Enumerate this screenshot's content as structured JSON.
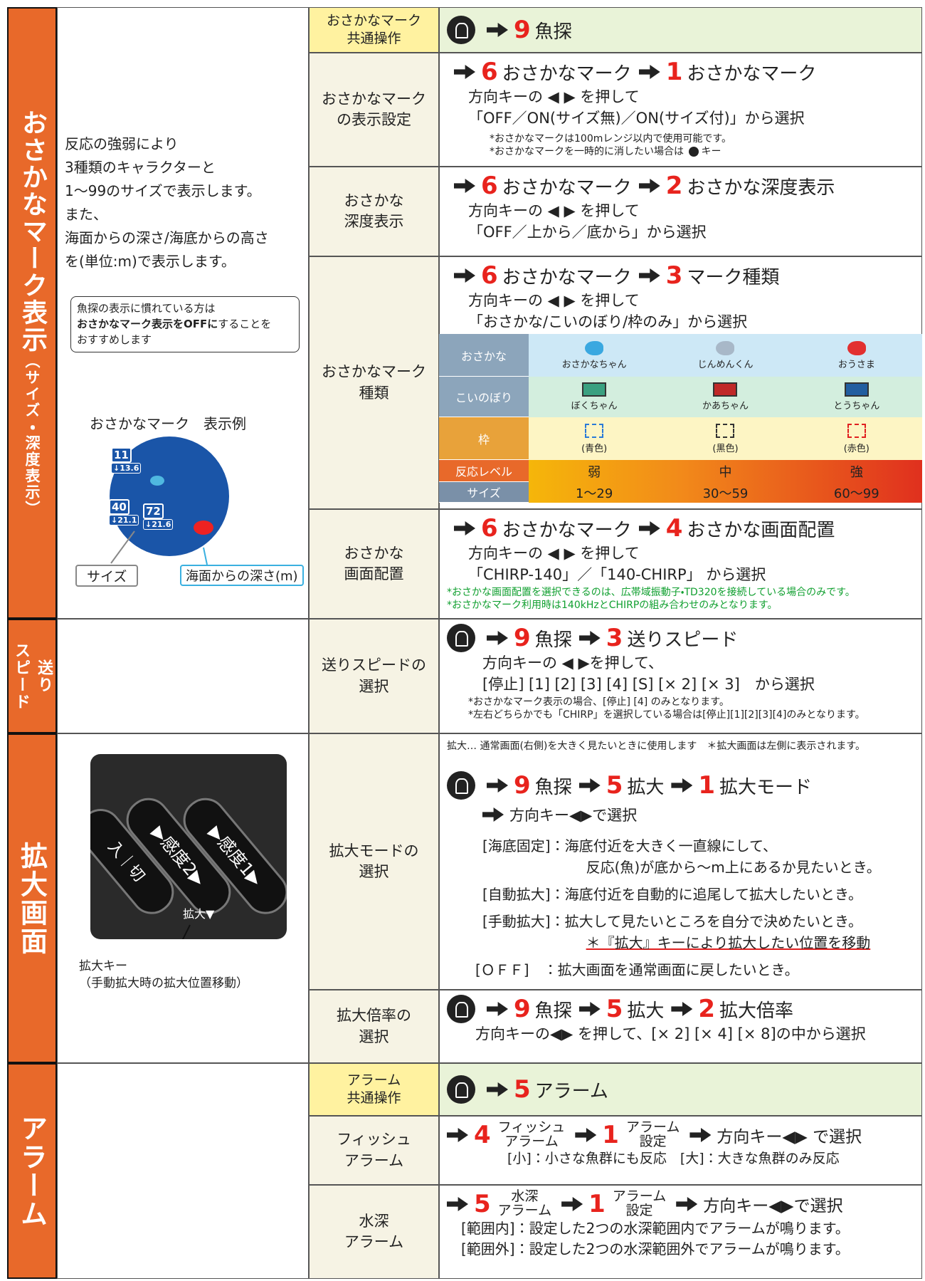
{
  "fish_mark": {
    "title": "おさかなマーク表示",
    "subtitle": "（サイズ・深度表示）",
    "description": [
      "反応の強弱により",
      "3種類のキャラクターと",
      "1～99のサイズで表示します。",
      "また、",
      "海面からの深さ/海底からの高さ",
      "を(単位:m)で表示します。"
    ],
    "note": {
      "line1": "魚探の表示に慣れている方は",
      "bold": "おさかなマーク表示をOFFに",
      "line2_rest": "することを",
      "line3": "おすすめします"
    },
    "example": {
      "title": "おさかなマーク　表示例",
      "marks": [
        {
          "size": "11",
          "depth": "↓13.6"
        },
        {
          "size": "40",
          "depth": "↓21.1"
        },
        {
          "size": "72",
          "depth": "↓21.6"
        }
      ],
      "callouts": [
        "サイズ",
        "海面からの深さ(m)"
      ]
    },
    "common": {
      "label": [
        "おさかなマーク",
        "共通操作"
      ],
      "steps": [
        {
          "num": "9",
          "text": "魚探"
        }
      ]
    },
    "display": {
      "label": [
        "おさかなマーク",
        "の表示設定"
      ],
      "steps": [
        {
          "num": "6",
          "text": "おさかなマーク"
        },
        {
          "num": "1",
          "text": "おさかなマーク"
        }
      ],
      "lines": [
        "方向キーの ◀ ▶ を押して",
        "「OFF／ON(サイズ無)／ON(サイズ付)」から選択"
      ],
      "notes": [
        "*おさかなマークは100mレンジ以内で使用可能です。",
        "*おさかなマークを一時的に消したい場合は",
        "キー"
      ]
    },
    "depth": {
      "label": [
        "おさかな",
        "深度表示"
      ],
      "steps": [
        {
          "num": "6",
          "text": "おさかなマーク"
        },
        {
          "num": "2",
          "text": "おさかな深度表示"
        }
      ],
      "lines": [
        "方向キーの ◀ ▶ を押して",
        "「OFF／上から／底から」から選択"
      ]
    },
    "type": {
      "label": [
        "おさかなマーク",
        "種類"
      ],
      "steps": [
        {
          "num": "6",
          "text": "おさかなマーク"
        },
        {
          "num": "3",
          "text": "マーク種類"
        }
      ],
      "lines": [
        "方向キーの ◀ ▶ を押して",
        "「おさかな/こいのぼり/枠のみ」から選択"
      ],
      "table": [
        {
          "head": "おさかな",
          "cells": [
            "おさかなちゃん",
            "じんめんくん",
            "おうさま"
          ]
        },
        {
          "head": "こいのぼり",
          "cells": [
            "ぼくちゃん",
            "かあちゃん",
            "とうちゃん"
          ]
        },
        {
          "head": "枠",
          "cells": [
            "(青色)",
            "(黒色)",
            "(赤色)"
          ]
        },
        {
          "head": "反応レベル",
          "cells": [
            "弱",
            "中",
            "強"
          ]
        },
        {
          "head": "サイズ",
          "cells": [
            "1～29",
            "30～59",
            "60～99"
          ]
        }
      ]
    },
    "layout": {
      "label": [
        "おさかな",
        "画面配置"
      ],
      "steps": [
        {
          "num": "6",
          "text": "おさかなマーク"
        },
        {
          "num": "4",
          "text": "おさかな画面配置"
        }
      ],
      "lines": [
        "方向キーの ◀ ▶ を押して",
        "「CHIRP-140」／「140-CHIRP」 から選択"
      ],
      "notes": [
        "*おさかな画面配置を選択できるのは、広帯域振動子・TD320を接続している場合のみです。",
        "*おさかなマーク利用時は140kHzとCHIRPの組み合わせのみとなります。"
      ]
    }
  },
  "speed": {
    "title": [
      "送り",
      "スピード"
    ],
    "label": [
      "送りスピードの",
      "選択"
    ],
    "steps": [
      {
        "num": "9",
        "text": "魚探"
      },
      {
        "num": "3",
        "text": "送りスピード"
      }
    ],
    "lines": [
      "方向キーの ◀ ▶を押して、",
      "[停止] [1] [2] [3] [4] [S] [× 2] [× 3]　から選択"
    ],
    "notes": [
      "*おさかなマーク表示の場合、[停止] [4] のみとなります。",
      "*左右どちらかでも「CHIRP」を選択している場合は[停止][1][2][3][4]のみとなります。"
    ]
  },
  "zoom": {
    "title": "拡大画面",
    "key_label": [
      "拡大キー",
      "（手動拡大時の拡大位置移動）"
    ],
    "keypad": [
      "入｜切",
      "▶感度2▶",
      "▶感度1▶",
      "拡大▼"
    ],
    "mode": {
      "label": [
        "拡大モードの",
        "選択"
      ],
      "intro": "拡大… 通常画面(右側)を大きく見たいときに使用します　＊拡大画面は左側に表示されます。",
      "steps": [
        {
          "num": "9",
          "text": "魚探"
        },
        {
          "num": "5",
          "text": "拡大"
        },
        {
          "num": "1",
          "text": "拡大モード"
        }
      ],
      "select": "方向キー◀▶で選択",
      "items": [
        {
          "key": "[海底固定]：",
          "text": [
            "海底付近を大きく一直線にして、",
            "反応(魚)が底から～m上にあるか見たいとき。"
          ]
        },
        {
          "key": "[自動拡大]：",
          "text": [
            "海底付近を自動的に追尾して拡大したいとき。"
          ]
        },
        {
          "key": "[手動拡大]：",
          "text": [
            "拡大して見たいところを自分で決めたいとき。",
            "＊『拡大』キーにより拡大したい位置を移動"
          ]
        },
        {
          "key": "[ＯＦＦ]　：",
          "text": [
            "拡大画面を通常画面に戻したいとき。"
          ]
        }
      ]
    },
    "ratio": {
      "label": [
        "拡大倍率の",
        "選択"
      ],
      "steps": [
        {
          "num": "9",
          "text": "魚探"
        },
        {
          "num": "5",
          "text": "拡大"
        },
        {
          "num": "2",
          "text": "拡大倍率"
        }
      ],
      "lines": [
        "方向キーの◀▶ を押して、[× 2] [× 4] [× 8]の中から選択"
      ]
    }
  },
  "alarm": {
    "title": "アラーム",
    "common": {
      "label": [
        "アラーム",
        "共通操作"
      ],
      "steps": [
        {
          "num": "5",
          "text": "アラーム"
        }
      ]
    },
    "fish": {
      "label": [
        "フィッシュ",
        "アラーム"
      ],
      "steps": [
        {
          "num": "4",
          "text": [
            "フィッシュ",
            "アラーム"
          ]
        },
        {
          "num": "1",
          "text": [
            "アラーム",
            "設定"
          ]
        }
      ],
      "select": "方向キー◀▶ で選択",
      "lines": [
        "[小]：小さな魚群にも反応　[大]：大きな魚群のみ反応"
      ]
    },
    "depth": {
      "label": [
        "水深",
        "アラーム"
      ],
      "steps": [
        {
          "num": "5",
          "text": [
            "水深",
            "アラーム"
          ]
        },
        {
          "num": "1",
          "text": [
            "アラーム",
            "設定"
          ]
        }
      ],
      "select": "方向キー◀▶で選択",
      "lines": [
        "[範囲内]：設定した2つの水深範囲内でアラームが鳴ります。",
        "[範囲外]：設定した2つの水深範囲外でアラームが鳴ります。"
      ]
    }
  }
}
